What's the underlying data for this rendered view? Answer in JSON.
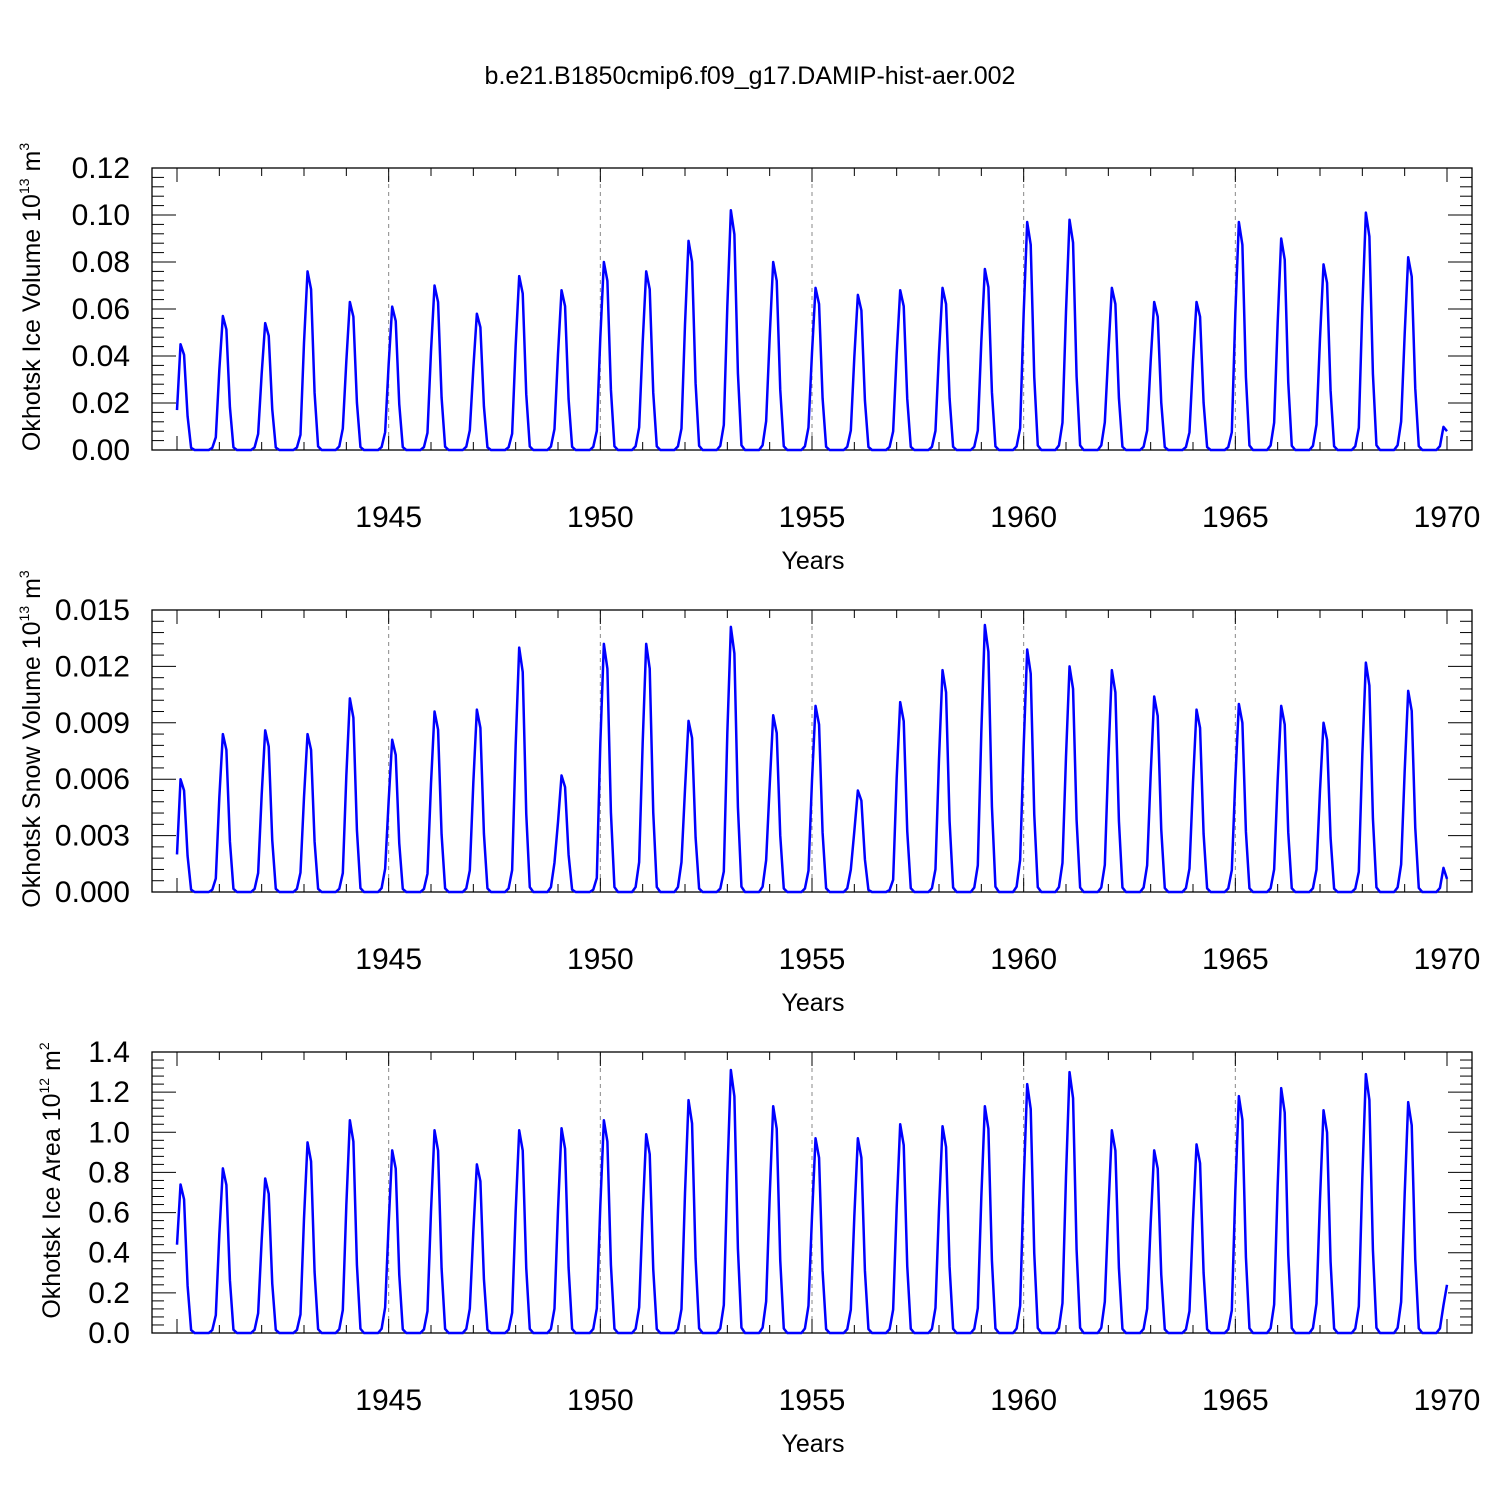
{
  "title": "b.e21.B1850cmip6.f09_g17.DAMIP-hist-aer.002",
  "colors": {
    "line": "#0000ff",
    "axis": "#000000",
    "grid": "#888888"
  },
  "chart_data": [
    {
      "type": "line",
      "ylabel": "Okhotsk Ice Volume 10",
      "ylabel_exp": "13",
      "ylabel_unit": " m",
      "ylabel_unit_exp": "3",
      "xlabel": "Years",
      "xlim": [
        1940,
        1970
      ],
      "ylim": [
        0,
        0.12
      ],
      "yticks": [
        "0.00",
        "0.02",
        "0.04",
        "0.06",
        "0.08",
        "0.10",
        "0.12"
      ],
      "xticks": [
        "1945",
        "1950",
        "1955",
        "1960",
        "1965",
        "1970"
      ],
      "series": [
        {
          "name": "Okhotsk Ice Volume",
          "peaks": [
            0.045,
            0.057,
            0.054,
            0.076,
            0.063,
            0.061,
            0.07,
            0.058,
            0.074,
            0.068,
            0.08,
            0.076,
            0.089,
            0.102,
            0.08,
            0.069,
            0.066,
            0.068,
            0.069,
            0.077,
            0.097,
            0.098,
            0.069,
            0.063,
            0.063,
            0.097,
            0.09,
            0.079,
            0.101,
            0.082
          ],
          "start": 0.017,
          "end": 0.008
        }
      ]
    },
    {
      "type": "line",
      "ylabel": "Okhotsk Snow Volume 10",
      "ylabel_exp": "13",
      "ylabel_unit": " m",
      "ylabel_unit_exp": "3",
      "xlabel": "Years",
      "xlim": [
        1940,
        1970
      ],
      "ylim": [
        0,
        0.015
      ],
      "yticks": [
        "0.000",
        "0.003",
        "0.006",
        "0.009",
        "0.012",
        "0.015"
      ],
      "xticks": [
        "1945",
        "1950",
        "1955",
        "1960",
        "1965",
        "1970"
      ],
      "series": [
        {
          "name": "Okhotsk Snow Volume",
          "peaks": [
            0.006,
            0.0084,
            0.0086,
            0.0084,
            0.0103,
            0.0081,
            0.0096,
            0.0097,
            0.013,
            0.0062,
            0.0132,
            0.0132,
            0.0091,
            0.0141,
            0.0094,
            0.0099,
            0.0054,
            0.0101,
            0.0118,
            0.0142,
            0.0129,
            0.012,
            0.0118,
            0.0104,
            0.0097,
            0.01,
            0.0099,
            0.009,
            0.0122,
            0.0107
          ],
          "start": 0.002,
          "end": 0.0007
        }
      ]
    },
    {
      "type": "line",
      "ylabel": "Okhotsk Ice Area 10",
      "ylabel_exp": "12",
      "ylabel_unit": " m",
      "ylabel_unit_exp": "2",
      "xlabel": "Years",
      "xlim": [
        1940,
        1970
      ],
      "ylim": [
        0,
        1.4
      ],
      "yticks": [
        "0.0",
        "0.2",
        "0.4",
        "0.6",
        "0.8",
        "1.0",
        "1.2",
        "1.4"
      ],
      "xticks": [
        "1945",
        "1950",
        "1955",
        "1960",
        "1965",
        "1970"
      ],
      "series": [
        {
          "name": "Okhotsk Ice Area",
          "peaks": [
            0.74,
            0.82,
            0.77,
            0.95,
            1.06,
            0.91,
            1.01,
            0.84,
            1.01,
            1.02,
            1.06,
            0.99,
            1.16,
            1.31,
            1.13,
            0.97,
            0.97,
            1.04,
            1.03,
            1.13,
            1.24,
            1.3,
            1.01,
            0.91,
            0.94,
            1.18,
            1.22,
            1.11,
            1.29,
            1.15
          ],
          "start": 0.44,
          "end": 0.24
        }
      ]
    }
  ]
}
